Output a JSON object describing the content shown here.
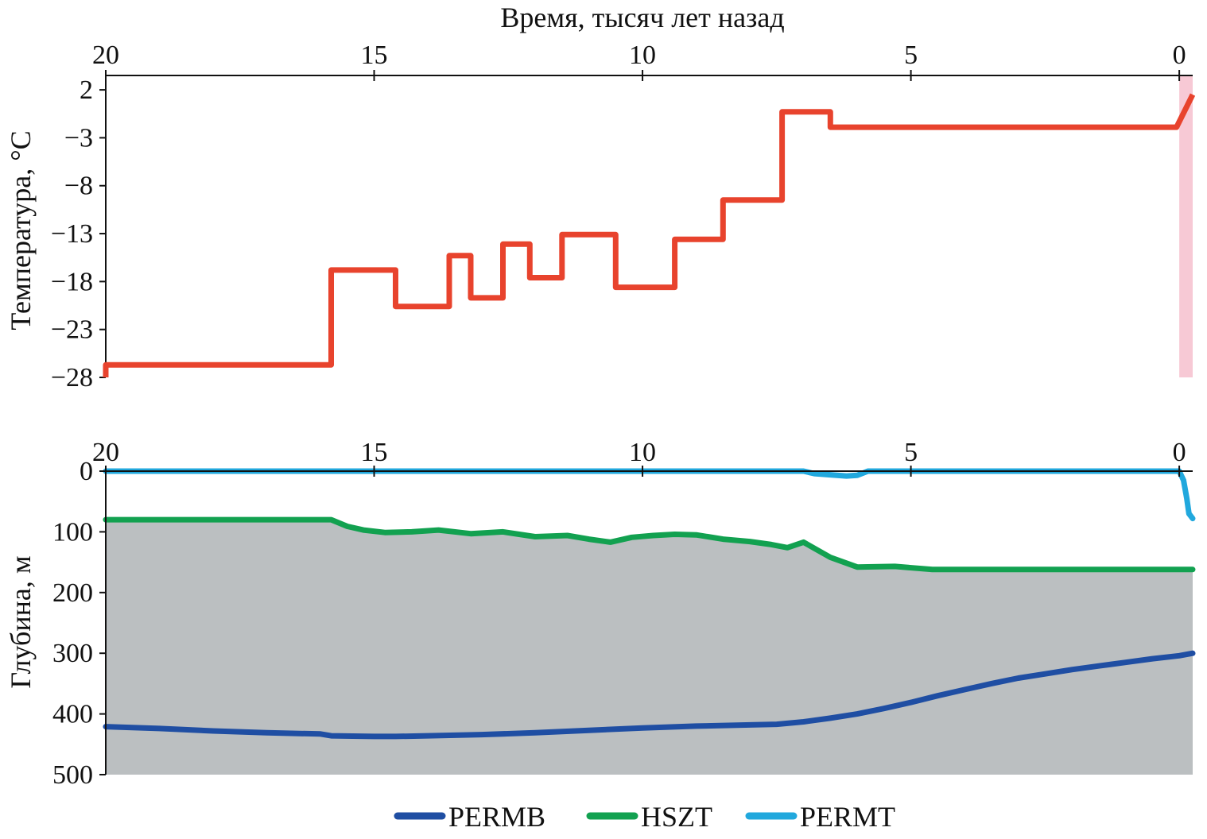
{
  "chart_data": [
    {
      "type": "line",
      "xlabel": "Время, тысяч лет назад",
      "ylabel": "Температура, °C",
      "xlim": [
        20,
        -0.25
      ],
      "xticks": [
        20,
        15,
        10,
        5,
        0
      ],
      "ylim": [
        -28,
        3.5
      ],
      "yticks": [
        2,
        -3,
        -8,
        -13,
        -18,
        -23,
        -28
      ],
      "ytick_labels": [
        "2",
        "−3",
        "−8",
        "−13",
        "−18",
        "−23",
        "−28"
      ],
      "highlight_band": {
        "x": [
          0,
          -0.25
        ],
        "color": "#f7c9d5"
      },
      "series": [
        {
          "color": "#e8432d",
          "x": [
            20,
            20,
            15.8,
            15.8,
            14.6,
            14.6,
            13.6,
            13.6,
            13.2,
            13.2,
            12.6,
            12.6,
            12.1,
            12.1,
            11.5,
            11.5,
            10.5,
            10.5,
            9.4,
            9.4,
            8.5,
            8.5,
            7.4,
            7.4,
            6.5,
            6.5,
            0.05,
            -0.25
          ],
          "y": [
            -28,
            -26.7,
            -26.7,
            -16.8,
            -16.8,
            -20.6,
            -20.6,
            -15.3,
            -15.3,
            -19.7,
            -19.7,
            -14.1,
            -14.1,
            -17.6,
            -17.6,
            -13.1,
            -13.1,
            -18.6,
            -18.6,
            -13.6,
            -13.6,
            -9.5,
            -9.5,
            -0.3,
            -0.3,
            -1.9,
            -1.9,
            1.5
          ]
        }
      ]
    },
    {
      "type": "area",
      "ylabel": "Глубина, м",
      "xlim": [
        20,
        -0.25
      ],
      "xticks": [
        20,
        15,
        10,
        5,
        0
      ],
      "ylim": [
        0,
        500
      ],
      "yticks": [
        0,
        100,
        200,
        300,
        400,
        500
      ],
      "fill_color": "#bbbfc1",
      "legend_position": "bottom-center",
      "series": [
        {
          "name": "PERMB",
          "color": "#1f4ea3",
          "x": [
            20,
            19,
            18,
            17,
            16,
            15.8,
            15,
            14.6,
            14,
            13,
            12,
            11,
            10,
            9,
            8,
            7.5,
            7,
            6.5,
            6,
            5.5,
            5,
            4.5,
            4,
            3.5,
            3,
            2.5,
            2,
            1.5,
            1,
            0.5,
            0,
            -0.25
          ],
          "y": [
            421,
            424,
            428,
            431,
            433,
            436,
            437,
            437,
            436,
            434,
            431,
            427,
            423,
            420,
            418,
            417,
            413,
            407,
            400,
            391,
            381,
            370,
            360,
            350,
            341,
            334,
            327,
            321,
            315,
            309,
            304,
            300
          ]
        },
        {
          "name": "HSZT",
          "color": "#12a150",
          "x": [
            20,
            15.8,
            15.5,
            15.2,
            14.8,
            14.3,
            13.8,
            13.2,
            12.6,
            12,
            11.4,
            11,
            10.6,
            10.2,
            9.8,
            9.4,
            9.0,
            8.5,
            8.0,
            7.6,
            7.3,
            7.0,
            6.5,
            6.0,
            5.3,
            4.6,
            4.0,
            2.0,
            0.0,
            -0.25
          ],
          "y": [
            80,
            80,
            91,
            97,
            101,
            100,
            97,
            103,
            100,
            108,
            106,
            112,
            117,
            109,
            106,
            104,
            105,
            112,
            116,
            121,
            126,
            117,
            142,
            158,
            157,
            162,
            162,
            162,
            162,
            162
          ]
        },
        {
          "name": "PERMT",
          "color": "#21a8dd",
          "x": [
            20,
            7.0,
            6.8,
            6.5,
            6.2,
            6.0,
            5.8,
            0.0,
            -0.02,
            -0.08,
            -0.14,
            -0.18,
            -0.25
          ],
          "y": [
            0,
            0,
            4,
            6,
            8,
            7,
            0,
            0,
            4,
            15,
            45,
            70,
            78
          ]
        }
      ]
    }
  ]
}
